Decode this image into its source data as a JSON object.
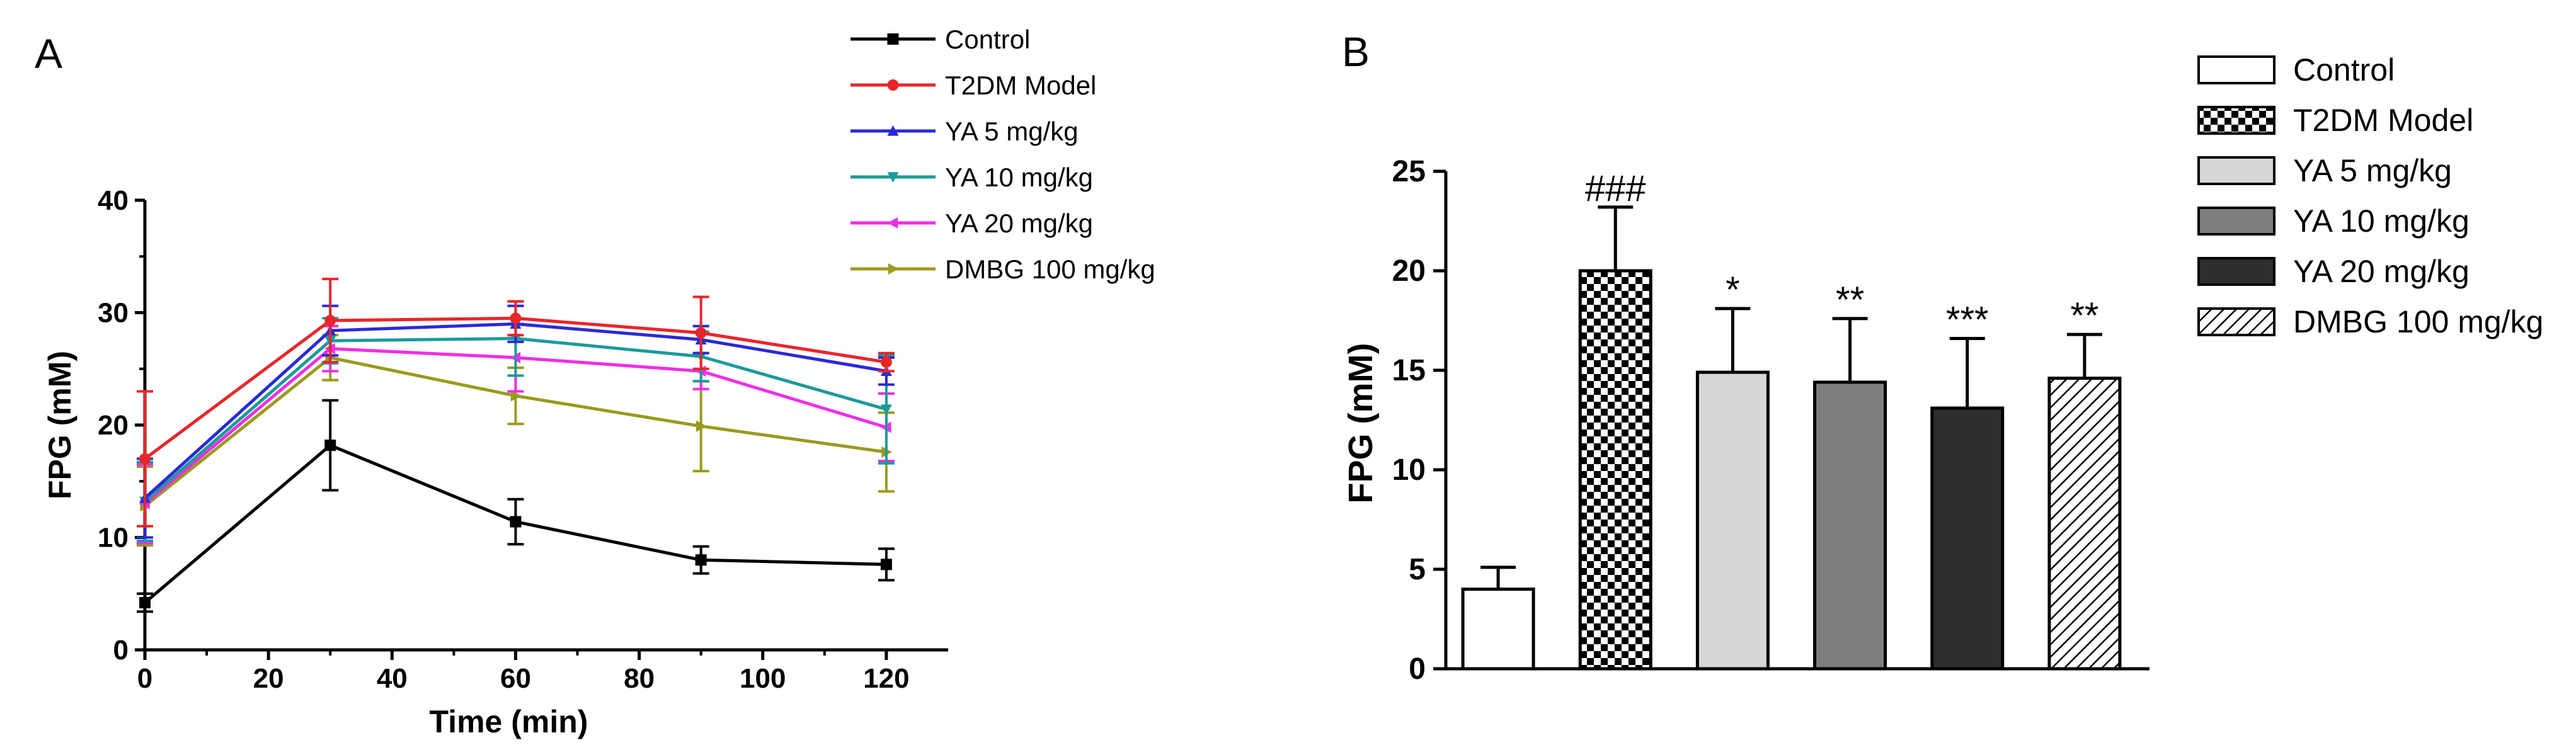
{
  "colors": {
    "control": "#000000",
    "t2dm": "#e8262a",
    "ya5": "#2a2ad6",
    "ya10": "#1b9a9a",
    "ya20": "#ee2ee6",
    "dmbg": "#9a9a1e"
  },
  "chart_data": [
    {
      "type": "line",
      "panel": "A",
      "xlabel": "Time (min)",
      "ylabel": "FPG (mM)",
      "xlim": [
        0,
        130
      ],
      "ylim": [
        0,
        40
      ],
      "xticks": [
        0,
        20,
        40,
        60,
        80,
        100,
        120
      ],
      "yticks": [
        0,
        10,
        20,
        30,
        40
      ],
      "x": [
        0,
        30,
        60,
        90,
        120
      ],
      "legend_position": "top-right",
      "series": [
        {
          "name": "Control",
          "color_key": "control",
          "marker": "square",
          "values": [
            4.2,
            18.2,
            11.4,
            8.0,
            7.6
          ],
          "errors": [
            0.8,
            4.0,
            2.0,
            1.2,
            1.4
          ]
        },
        {
          "name": "T2DM Model",
          "color_key": "t2dm",
          "marker": "circle",
          "values": [
            17.0,
            29.3,
            29.5,
            28.2,
            25.6
          ],
          "errors": [
            6.0,
            3.7,
            1.5,
            3.2,
            0.8
          ]
        },
        {
          "name": "YA 5 mg/kg",
          "color_key": "ya5",
          "marker": "triangle-up",
          "values": [
            13.5,
            28.4,
            29.0,
            27.6,
            24.8
          ],
          "errors": [
            3.5,
            2.2,
            1.6,
            1.2,
            1.2
          ]
        },
        {
          "name": "YA 10 mg/kg",
          "color_key": "ya10",
          "marker": "triangle-down",
          "values": [
            13.2,
            27.5,
            27.7,
            26.1,
            21.4
          ],
          "errors": [
            3.5,
            2.0,
            3.3,
            2.2,
            4.8
          ]
        },
        {
          "name": "YA 20 mg/kg",
          "color_key": "ya20",
          "marker": "triangle-left",
          "values": [
            13.0,
            26.8,
            26.0,
            24.8,
            19.8
          ],
          "errors": [
            3.5,
            2.0,
            3.0,
            1.6,
            3.0
          ]
        },
        {
          "name": "DMBG 100 mg/kg",
          "color_key": "dmbg",
          "marker": "triangle-right",
          "values": [
            12.8,
            26.0,
            22.6,
            19.9,
            17.6
          ],
          "errors": [
            3.5,
            2.0,
            2.5,
            4.0,
            3.5
          ]
        }
      ]
    },
    {
      "type": "bar",
      "panel": "B",
      "ylabel": "FPG (mM)",
      "ylim": [
        0,
        25
      ],
      "yticks": [
        0,
        5,
        10,
        15,
        20,
        25
      ],
      "legend_position": "top-right",
      "categories": [
        "Control",
        "T2DM Model",
        "YA 5 mg/kg",
        "YA 10 mg/kg",
        "YA  20 mg/kg",
        "DMBG 100 mg/kg"
      ],
      "values": [
        4.0,
        20.0,
        14.9,
        14.4,
        13.1,
        14.6
      ],
      "errors": [
        1.1,
        3.2,
        3.2,
        3.2,
        3.5,
        2.2
      ],
      "annotations": [
        "",
        "###",
        "*",
        "**",
        "***",
        "**"
      ],
      "fills": [
        "white",
        "checker",
        "#d6d6d6",
        "#7e7e7e",
        "#2e2e2e",
        "hatch"
      ]
    }
  ]
}
